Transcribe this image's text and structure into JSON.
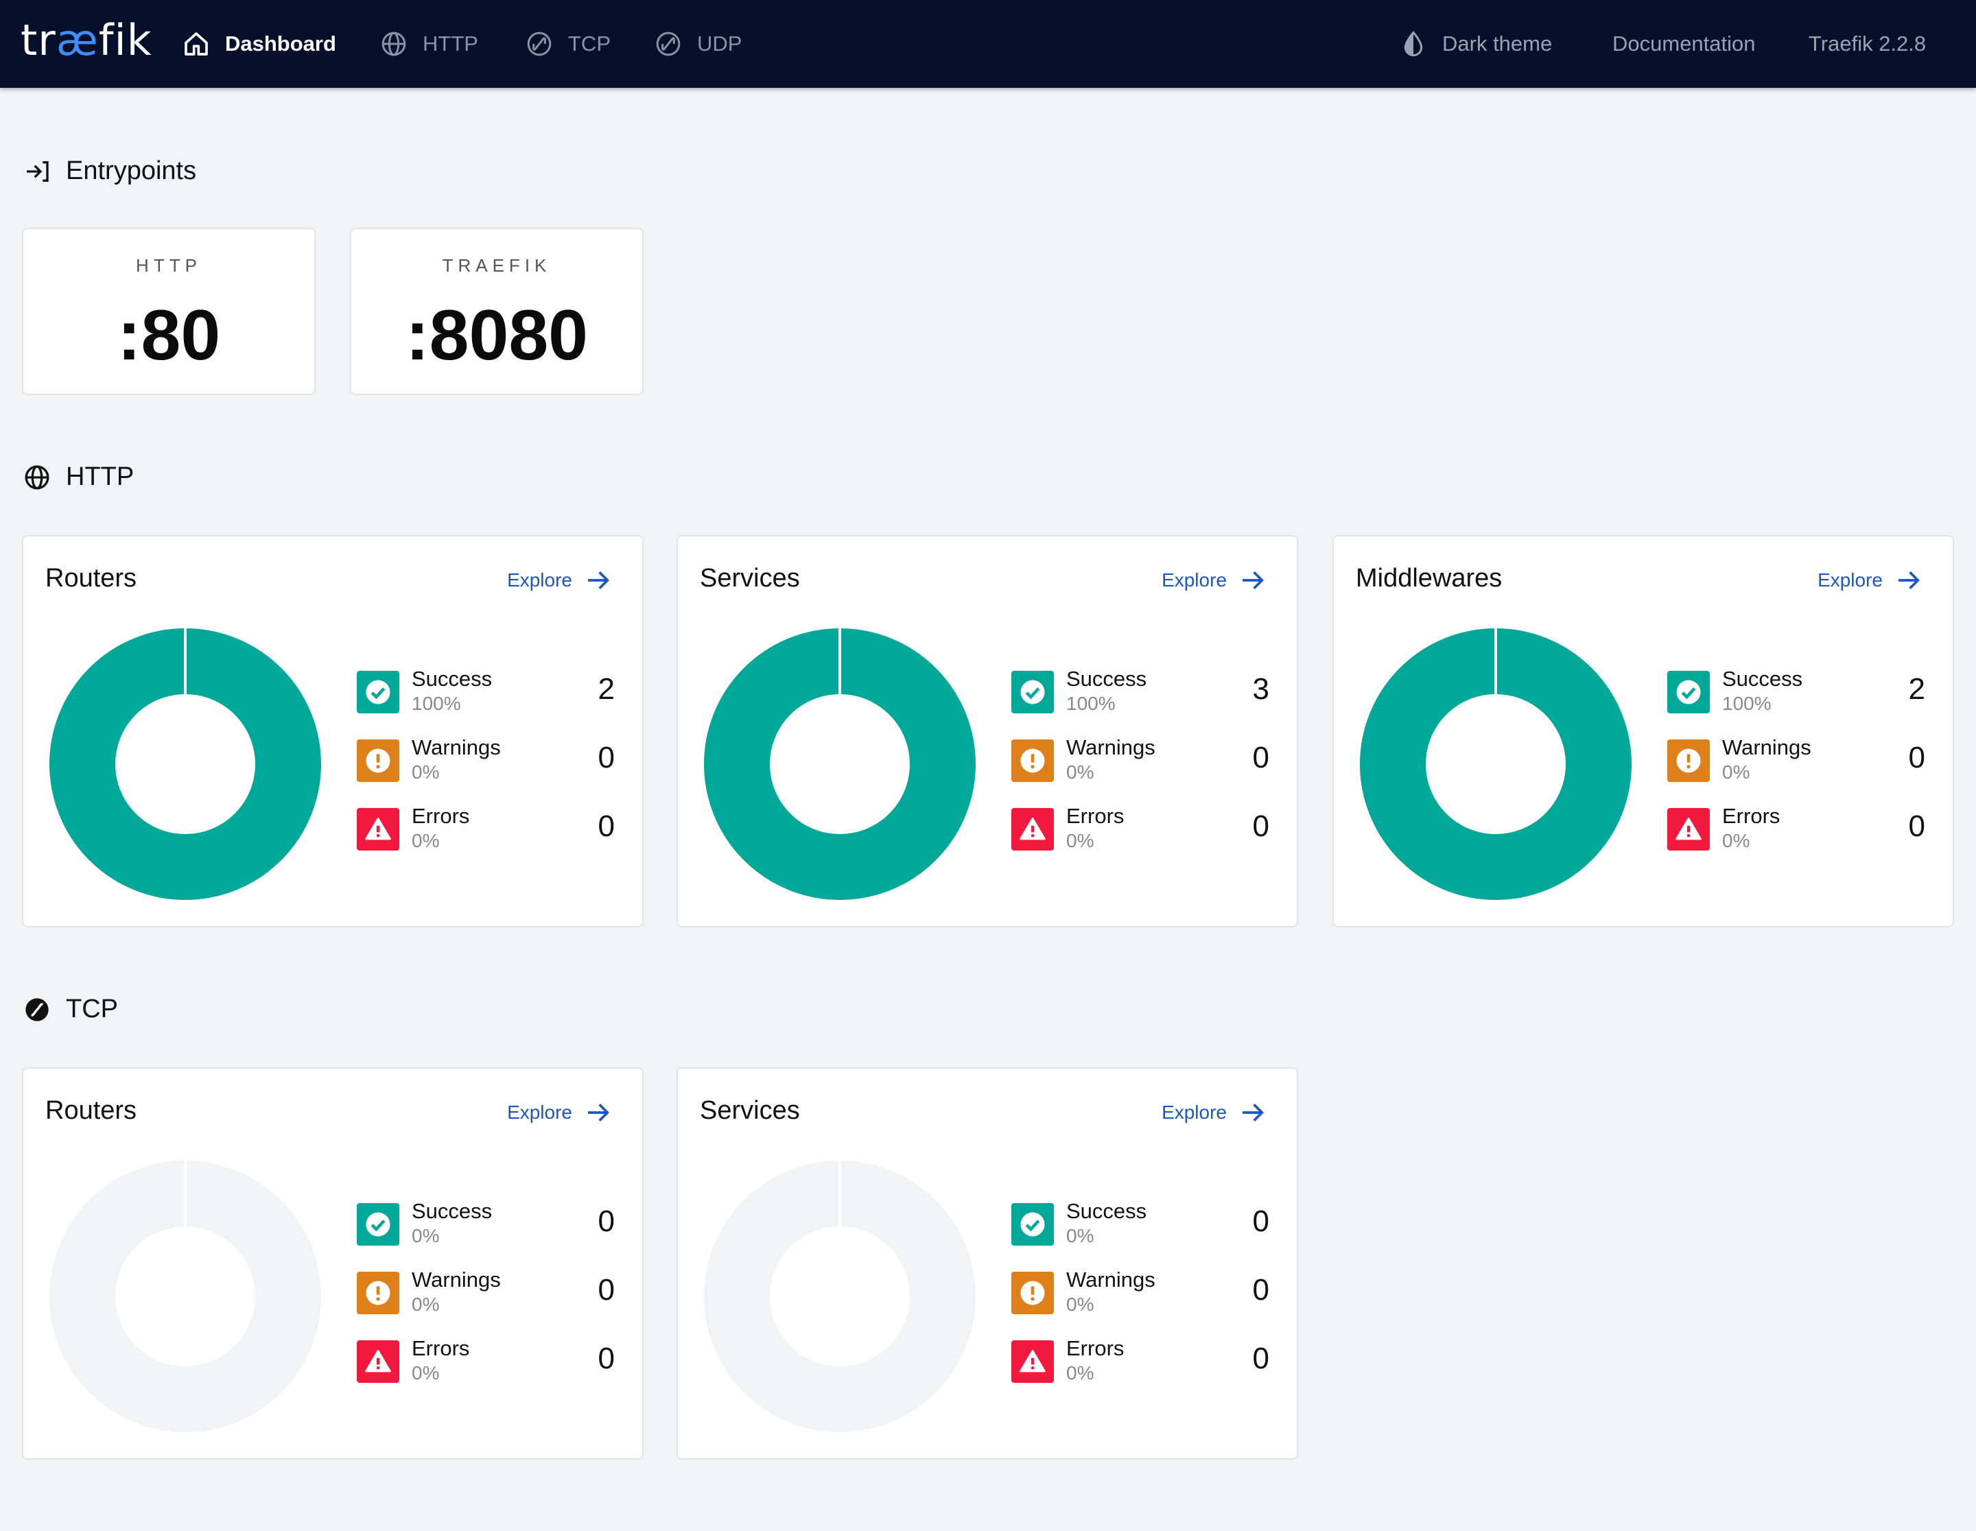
{
  "nav": {
    "logo_pre": "tr",
    "logo_ae": "æ",
    "logo_post": "fik",
    "dashboard": "Dashboard",
    "http": "HTTP",
    "tcp": "TCP",
    "udp": "UDP",
    "dark_theme": "Dark theme",
    "documentation": "Documentation",
    "version": "Traefik 2.2.8"
  },
  "entrypoints": {
    "title": "Entrypoints",
    "items": [
      {
        "name": "HTTP",
        "port": ":80"
      },
      {
        "name": "TRAEFIK",
        "port": ":8080"
      }
    ]
  },
  "labels": {
    "explore": "Explore",
    "success": "Success",
    "warnings": "Warnings",
    "errors": "Errors"
  },
  "http": {
    "title": "HTTP",
    "routers": {
      "title": "Routers",
      "success": 2,
      "success_pct": "100%",
      "warnings": 0,
      "warnings_pct": "0%",
      "errors": 0,
      "errors_pct": "0%"
    },
    "services": {
      "title": "Services",
      "success": 3,
      "success_pct": "100%",
      "warnings": 0,
      "warnings_pct": "0%",
      "errors": 0,
      "errors_pct": "0%"
    },
    "middlewares": {
      "title": "Middlewares",
      "success": 2,
      "success_pct": "100%",
      "warnings": 0,
      "warnings_pct": "0%",
      "errors": 0,
      "errors_pct": "0%"
    }
  },
  "tcp": {
    "title": "TCP",
    "routers": {
      "title": "Routers",
      "success": 0,
      "success_pct": "0%",
      "warnings": 0,
      "warnings_pct": "0%",
      "errors": 0,
      "errors_pct": "0%"
    },
    "services": {
      "title": "Services",
      "success": 0,
      "success_pct": "0%",
      "warnings": 0,
      "warnings_pct": "0%",
      "errors": 0,
      "errors_pct": "0%"
    }
  },
  "colors": {
    "success": "#00a899",
    "warning": "#df7f19",
    "error": "#f2193f",
    "empty": "#f2f3f5",
    "nav_bg": "#06102b",
    "link": "#1b56c5"
  }
}
